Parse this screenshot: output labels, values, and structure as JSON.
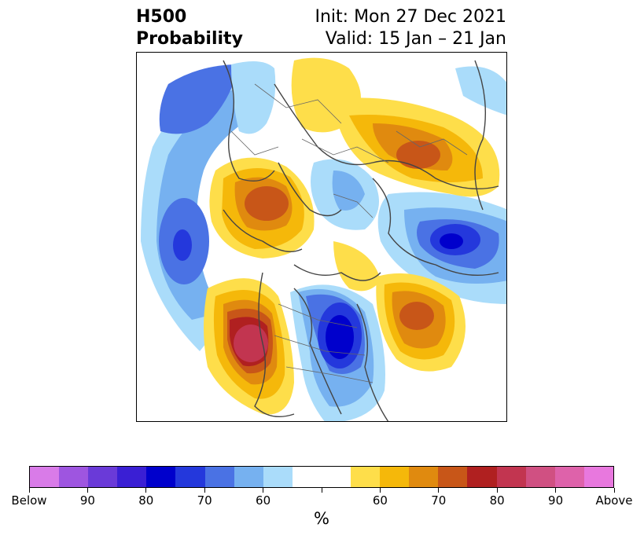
{
  "title": {
    "left_line1": "H500",
    "left_line2": "Probability",
    "right_line1": "Init: Mon 27 Dec 2021",
    "right_line2": "Valid: 15 Jan – 21 Jan"
  },
  "colorbar": {
    "unit": "%",
    "colors": [
      "#d97be8",
      "#9e55e0",
      "#6a3ad8",
      "#3a1fd4",
      "#0000cc",
      "#2438dc",
      "#4a72e4",
      "#76b1f0",
      "#aadcfa",
      "#ffffff",
      "#ffffff",
      "#fede4a",
      "#f5b80a",
      "#e08a0f",
      "#c85618",
      "#b02020",
      "#c23550",
      "#d05082",
      "#de62aa",
      "#e878de"
    ],
    "labels": [
      "Below",
      "90",
      "80",
      "70",
      "60",
      "",
      "60",
      "70",
      "80",
      "90",
      "Above"
    ]
  },
  "palette": {
    "below_light": "#aadcfa",
    "below_mid": "#76b1f0",
    "below_strong": "#4a72e4",
    "below_max": "#2438dc",
    "below_extreme": "#0000cc",
    "above_light": "#fede4a",
    "above_mid": "#f5b80a",
    "above_strong": "#e08a0f",
    "above_max": "#c85618",
    "above_extreme": "#b02020",
    "above_top": "#c23550",
    "coastline": "#444444"
  }
}
